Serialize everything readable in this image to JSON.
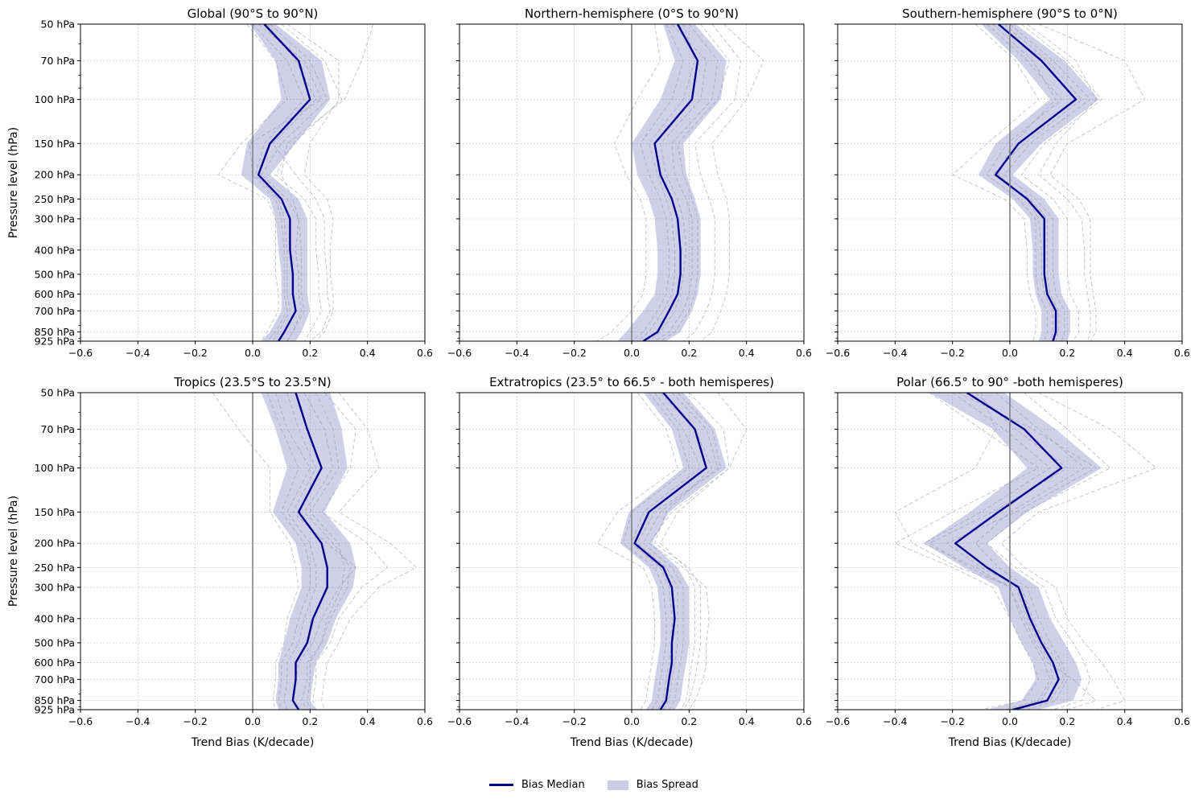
{
  "chart_data": {
    "type": "line",
    "levels": [
      "50 hPa",
      "70 hPa ",
      "100 hPa",
      "150 hPa",
      "200 hPa",
      "250 hPa",
      "300 hPa",
      "400 hPa",
      "500 hPa",
      "600 hPa",
      "700 hPa",
      "850 hPa",
      "925 hPa"
    ],
    "pressure": [
      50,
      70,
      100,
      150,
      200,
      250,
      300,
      400,
      500,
      600,
      700,
      850,
      925
    ],
    "xlim": [
      -0.6,
      0.6
    ],
    "xticks": [
      -0.6,
      -0.4,
      -0.2,
      0.0,
      0.2,
      0.4,
      0.6
    ],
    "xtick_labels": [
      "−0.6",
      "−0.4",
      "−0.2",
      "0.0",
      "0.2",
      "0.4",
      "0.6"
    ],
    "ylim": [
      50,
      925
    ],
    "ylabel": "Pressure level (hPa)",
    "xlabel": "Trend Bias (K/decade)",
    "legend": [
      "Bias Median",
      "Bias Spread"
    ],
    "panels": [
      {
        "title": "Global (90°S to 90°N)",
        "median": [
          0.04,
          0.16,
          0.2,
          0.06,
          0.02,
          0.1,
          0.13,
          0.13,
          0.14,
          0.14,
          0.15,
          0.11,
          0.09
        ],
        "spread_low": [
          -0.01,
          0.08,
          0.1,
          -0.02,
          -0.04,
          0.06,
          0.08,
          0.09,
          0.1,
          0.1,
          0.1,
          0.06,
          0.03
        ],
        "spread_high": [
          0.08,
          0.24,
          0.27,
          0.15,
          0.06,
          0.16,
          0.19,
          0.19,
          0.19,
          0.19,
          0.2,
          0.17,
          0.15
        ],
        "members": [
          [
            0.0,
            0.12,
            0.18,
            0.04,
            0.01,
            0.09,
            0.11,
            0.12,
            0.12,
            0.12,
            0.13,
            0.09,
            0.07
          ],
          [
            0.06,
            0.2,
            0.26,
            0.1,
            0.03,
            0.12,
            0.16,
            0.17,
            0.17,
            0.17,
            0.18,
            0.14,
            0.12
          ],
          [
            0.1,
            0.25,
            0.31,
            0.14,
            0.08,
            0.18,
            0.22,
            0.22,
            0.23,
            0.23,
            0.24,
            0.2,
            0.18
          ],
          [
            -0.02,
            0.08,
            0.12,
            -0.04,
            -0.12,
            0.05,
            0.08,
            0.08,
            0.08,
            0.09,
            0.09,
            0.05,
            0.03
          ],
          [
            0.12,
            0.3,
            0.3,
            0.2,
            0.18,
            0.26,
            0.28,
            0.27,
            0.27,
            0.28,
            0.28,
            0.25,
            0.22
          ],
          [
            0.42,
            0.38,
            0.32,
            0.12,
            0.1,
            0.14,
            0.16,
            0.15,
            0.16,
            0.16,
            0.17,
            0.14,
            0.12
          ],
          [
            0.05,
            0.15,
            0.22,
            0.07,
            0.15,
            0.22,
            0.25,
            0.25,
            0.26,
            0.26,
            0.27,
            0.24,
            0.2
          ],
          [
            0.02,
            0.18,
            0.24,
            -0.01,
            0.0,
            0.08,
            0.1,
            0.11,
            0.11,
            0.11,
            0.12,
            0.08,
            0.05
          ]
        ]
      },
      {
        "title": "Northern-hemisphere (0°S to 90°N)",
        "median": [
          0.16,
          0.23,
          0.21,
          0.08,
          0.1,
          0.14,
          0.16,
          0.17,
          0.17,
          0.16,
          0.13,
          0.09,
          0.04
        ],
        "spread_low": [
          0.11,
          0.15,
          0.1,
          0.0,
          0.02,
          0.06,
          0.08,
          0.09,
          0.09,
          0.08,
          0.04,
          -0.02,
          -0.05
        ],
        "spread_high": [
          0.22,
          0.33,
          0.31,
          0.18,
          0.19,
          0.22,
          0.24,
          0.24,
          0.24,
          0.23,
          0.21,
          0.17,
          0.12
        ],
        "members": [
          [
            0.12,
            0.18,
            0.14,
            0.03,
            0.06,
            0.1,
            0.12,
            0.13,
            0.13,
            0.12,
            0.09,
            0.04,
            0.0
          ],
          [
            0.2,
            0.3,
            0.28,
            0.14,
            0.15,
            0.19,
            0.21,
            0.21,
            0.21,
            0.2,
            0.18,
            0.13,
            0.08
          ],
          [
            0.28,
            0.38,
            0.36,
            0.22,
            0.24,
            0.27,
            0.29,
            0.29,
            0.29,
            0.28,
            0.26,
            0.22,
            0.18
          ],
          [
            0.08,
            0.1,
            0.02,
            -0.06,
            -0.02,
            0.03,
            0.05,
            0.05,
            0.05,
            0.04,
            0.0,
            -0.07,
            -0.12
          ],
          [
            0.32,
            0.46,
            0.4,
            0.28,
            0.3,
            0.33,
            0.34,
            0.34,
            0.34,
            0.33,
            0.31,
            0.28,
            0.24
          ],
          [
            0.14,
            0.26,
            0.24,
            0.1,
            0.12,
            0.16,
            0.18,
            0.19,
            0.18,
            0.17,
            0.15,
            0.1,
            0.06
          ],
          [
            0.18,
            0.22,
            0.18,
            0.06,
            0.09,
            0.12,
            0.14,
            0.15,
            0.15,
            0.14,
            0.11,
            0.06,
            0.02
          ],
          [
            0.24,
            0.34,
            0.3,
            0.16,
            0.18,
            0.21,
            0.23,
            0.23,
            0.23,
            0.22,
            0.2,
            0.15,
            0.1
          ]
        ]
      },
      {
        "title": "Southern-hemisphere (90°S to 0°N)",
        "median": [
          -0.04,
          0.11,
          0.23,
          0.03,
          -0.05,
          0.06,
          0.12,
          0.12,
          0.12,
          0.13,
          0.16,
          0.16,
          0.15
        ],
        "spread_low": [
          -0.1,
          0.03,
          0.14,
          -0.05,
          -0.11,
          0.01,
          0.07,
          0.08,
          0.08,
          0.09,
          0.11,
          0.11,
          0.1
        ],
        "spread_high": [
          0.02,
          0.19,
          0.31,
          0.11,
          0.01,
          0.12,
          0.17,
          0.17,
          0.17,
          0.18,
          0.21,
          0.21,
          0.2
        ],
        "members": [
          [
            -0.08,
            0.06,
            0.18,
            -0.01,
            -0.08,
            0.03,
            0.09,
            0.09,
            0.09,
            0.1,
            0.13,
            0.13,
            0.12
          ],
          [
            0.0,
            0.15,
            0.28,
            0.07,
            -0.02,
            0.09,
            0.15,
            0.15,
            0.15,
            0.16,
            0.19,
            0.19,
            0.18
          ],
          [
            0.04,
            0.2,
            0.32,
            0.12,
            0.04,
            0.15,
            0.2,
            0.2,
            0.2,
            0.21,
            0.24,
            0.24,
            0.22
          ],
          [
            -0.12,
            0.02,
            0.1,
            -0.08,
            -0.2,
            -0.02,
            0.05,
            0.06,
            0.06,
            0.07,
            0.09,
            0.09,
            0.08
          ],
          [
            0.06,
            0.23,
            0.3,
            0.16,
            0.1,
            0.2,
            0.25,
            0.26,
            0.26,
            0.27,
            0.28,
            0.28,
            0.27
          ],
          [
            0.1,
            0.4,
            0.47,
            0.2,
            0.14,
            0.24,
            0.28,
            0.28,
            0.28,
            0.29,
            0.3,
            0.3,
            0.28
          ],
          [
            -0.06,
            0.08,
            0.16,
            0.01,
            -0.04,
            0.06,
            0.1,
            0.11,
            0.11,
            0.12,
            0.15,
            0.15,
            0.14
          ],
          [
            -0.02,
            0.13,
            0.25,
            0.05,
            -0.06,
            0.07,
            0.13,
            0.13,
            0.13,
            0.14,
            0.17,
            0.17,
            0.16
          ]
        ]
      },
      {
        "title": "Tropics (23.5°S to 23.5°N)",
        "median": [
          0.15,
          0.19,
          0.24,
          0.16,
          0.24,
          0.26,
          0.26,
          0.21,
          0.19,
          0.15,
          0.15,
          0.14,
          0.16
        ],
        "spread_low": [
          0.03,
          0.08,
          0.12,
          0.07,
          0.15,
          0.17,
          0.17,
          0.13,
          0.11,
          0.09,
          0.09,
          0.08,
          0.09
        ],
        "spread_high": [
          0.27,
          0.31,
          0.33,
          0.25,
          0.34,
          0.36,
          0.35,
          0.29,
          0.26,
          0.22,
          0.21,
          0.2,
          0.22
        ],
        "members": [
          [
            -0.14,
            -0.05,
            0.06,
            0.06,
            0.13,
            0.15,
            0.16,
            0.12,
            0.11,
            0.08,
            0.08,
            0.07,
            0.08
          ],
          [
            0.08,
            0.12,
            0.2,
            0.12,
            0.2,
            0.22,
            0.22,
            0.18,
            0.16,
            0.12,
            0.12,
            0.11,
            0.12
          ],
          [
            0.22,
            0.28,
            0.3,
            0.2,
            0.3,
            0.32,
            0.31,
            0.26,
            0.24,
            0.2,
            0.2,
            0.19,
            0.2
          ],
          [
            0.3,
            0.4,
            0.44,
            0.3,
            0.48,
            0.57,
            0.44,
            0.34,
            0.3,
            0.26,
            0.25,
            0.24,
            0.25
          ],
          [
            0.12,
            0.16,
            0.22,
            0.14,
            0.26,
            0.36,
            0.3,
            0.24,
            0.21,
            0.16,
            0.15,
            0.14,
            0.16
          ],
          [
            0.18,
            0.25,
            0.28,
            0.18,
            0.28,
            0.34,
            0.33,
            0.27,
            0.24,
            0.19,
            0.19,
            0.17,
            0.19
          ],
          [
            0.05,
            0.1,
            0.16,
            0.1,
            0.18,
            0.2,
            0.2,
            0.16,
            0.14,
            0.1,
            0.1,
            0.09,
            0.1
          ],
          [
            0.25,
            0.36,
            0.34,
            0.24,
            0.4,
            0.47,
            0.38,
            0.3,
            0.27,
            0.22,
            0.22,
            0.21,
            0.22
          ]
        ]
      },
      {
        "title": "Extratropics (23.5° to 66.5° - both hemisperes)",
        "median": [
          0.11,
          0.22,
          0.26,
          0.06,
          0.01,
          0.11,
          0.14,
          0.15,
          0.14,
          0.14,
          0.13,
          0.12,
          0.1
        ],
        "spread_low": [
          0.04,
          0.14,
          0.18,
          -0.01,
          -0.04,
          0.06,
          0.09,
          0.1,
          0.1,
          0.09,
          0.08,
          0.07,
          0.05
        ],
        "spread_high": [
          0.18,
          0.29,
          0.33,
          0.13,
          0.07,
          0.16,
          0.2,
          0.2,
          0.2,
          0.19,
          0.18,
          0.17,
          0.15
        ],
        "members": [
          [
            0.06,
            0.16,
            0.2,
            0.0,
            -0.03,
            0.08,
            0.11,
            0.12,
            0.12,
            0.11,
            0.1,
            0.09,
            0.07
          ],
          [
            0.14,
            0.26,
            0.3,
            0.1,
            0.04,
            0.14,
            0.18,
            0.18,
            0.18,
            0.17,
            0.16,
            0.15,
            0.13
          ],
          [
            0.2,
            0.32,
            0.34,
            0.16,
            0.1,
            0.19,
            0.22,
            0.22,
            0.22,
            0.21,
            0.2,
            0.19,
            0.17
          ],
          [
            0.02,
            0.12,
            0.16,
            -0.05,
            -0.12,
            0.04,
            0.07,
            0.08,
            0.08,
            0.07,
            0.06,
            0.05,
            0.03
          ],
          [
            0.3,
            0.4,
            0.34,
            0.14,
            0.06,
            0.18,
            0.26,
            0.27,
            0.26,
            0.26,
            0.25,
            0.22,
            0.2
          ],
          [
            0.1,
            0.22,
            0.28,
            0.12,
            0.08,
            0.2,
            0.24,
            0.24,
            0.24,
            0.23,
            0.22,
            0.2,
            0.18
          ],
          [
            0.08,
            0.18,
            0.24,
            0.04,
            0.0,
            0.1,
            0.13,
            0.14,
            0.14,
            0.13,
            0.12,
            0.11,
            0.09
          ],
          [
            0.16,
            0.28,
            0.31,
            0.08,
            0.02,
            0.12,
            0.16,
            0.16,
            0.16,
            0.15,
            0.14,
            0.13,
            0.11
          ]
        ]
      },
      {
        "title": "Polar (66.5° to 90° -both hemisperes)",
        "median": [
          -0.15,
          0.05,
          0.18,
          -0.04,
          -0.19,
          -0.08,
          0.03,
          0.07,
          0.11,
          0.15,
          0.17,
          0.13,
          0.01
        ],
        "spread_low": [
          -0.28,
          -0.06,
          0.06,
          -0.14,
          -0.3,
          -0.16,
          -0.04,
          0.0,
          0.04,
          0.08,
          0.09,
          0.04,
          -0.08
        ],
        "spread_high": [
          -0.02,
          0.16,
          0.32,
          0.06,
          -0.08,
          0.0,
          0.1,
          0.14,
          0.19,
          0.23,
          0.25,
          0.22,
          0.1
        ],
        "members": [
          [
            -0.28,
            -0.1,
            0.1,
            -0.2,
            -0.4,
            -0.2,
            -0.06,
            0.0,
            0.04,
            0.08,
            0.1,
            0.05,
            -0.1
          ],
          [
            -0.05,
            0.1,
            0.26,
            0.0,
            -0.12,
            -0.04,
            0.06,
            0.1,
            0.14,
            0.18,
            0.2,
            0.16,
            0.06
          ],
          [
            0.05,
            0.2,
            0.35,
            0.05,
            -0.08,
            0.02,
            0.12,
            0.16,
            0.22,
            0.26,
            0.28,
            0.25,
            0.15
          ],
          [
            -0.2,
            -0.02,
            0.14,
            -0.1,
            -0.3,
            -0.12,
            0.0,
            0.04,
            0.08,
            0.12,
            0.14,
            0.1,
            -0.02
          ],
          [
            0.1,
            0.35,
            0.51,
            0.1,
            -0.03,
            0.05,
            0.16,
            0.2,
            0.26,
            0.32,
            0.36,
            0.4,
            0.3
          ],
          [
            -0.1,
            -0.05,
            -0.12,
            -0.4,
            -0.34,
            -0.18,
            0.02,
            0.06,
            0.1,
            0.14,
            0.15,
            0.11,
            0.0
          ],
          [
            -0.18,
            0.08,
            0.3,
            0.02,
            -0.22,
            -0.1,
            0.04,
            0.08,
            0.12,
            0.17,
            0.19,
            0.14,
            0.03
          ],
          [
            -0.12,
            0.02,
            0.2,
            -0.06,
            -0.28,
            -0.14,
            0.0,
            0.05,
            0.09,
            0.13,
            0.22,
            0.3,
            0.2
          ]
        ]
      }
    ]
  }
}
